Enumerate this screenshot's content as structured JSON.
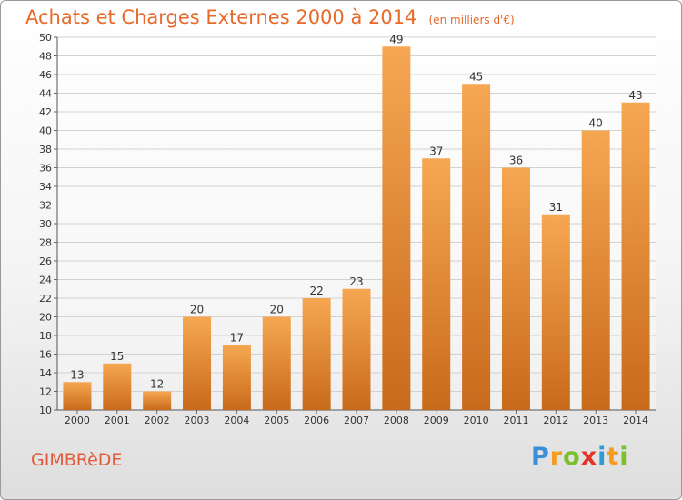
{
  "title": "Achats et Charges Externes 2000 à 2014",
  "subtitle": "(en milliers d'€)",
  "commune": "GIMBRèDE",
  "logo": {
    "text": "Proxiti",
    "letters": [
      {
        "ch": "P",
        "color": "#3a8fd6"
      },
      {
        "ch": "r",
        "color": "#f39c1f"
      },
      {
        "ch": "o",
        "color": "#7bbf2a"
      },
      {
        "ch": "x",
        "color": "#e5332a"
      },
      {
        "ch": "i",
        "color": "#2c9bd6"
      },
      {
        "ch": "t",
        "color": "#f39c1f"
      },
      {
        "ch": "i",
        "color": "#7bbf2a"
      }
    ]
  },
  "colors": {
    "bar_light": "#f6a752",
    "bar_dark": "#c86a1b",
    "title": "#e8692a"
  },
  "chart_data": {
    "type": "bar",
    "categories": [
      "2000",
      "2001",
      "2002",
      "2003",
      "2004",
      "2005",
      "2006",
      "2007",
      "2008",
      "2009",
      "2010",
      "2011",
      "2012",
      "2013",
      "2014"
    ],
    "values": [
      13,
      15,
      12,
      20,
      17,
      20,
      22,
      23,
      49,
      37,
      45,
      36,
      31,
      40,
      43
    ],
    "title": "Achats et Charges Externes 2000 à 2014",
    "ylim": [
      10,
      50
    ],
    "yticks": [
      10,
      12,
      14,
      16,
      18,
      20,
      22,
      24,
      26,
      28,
      30,
      32,
      34,
      36,
      38,
      40,
      42,
      44,
      46,
      48,
      50
    ],
    "grid": true,
    "legend": "none"
  }
}
